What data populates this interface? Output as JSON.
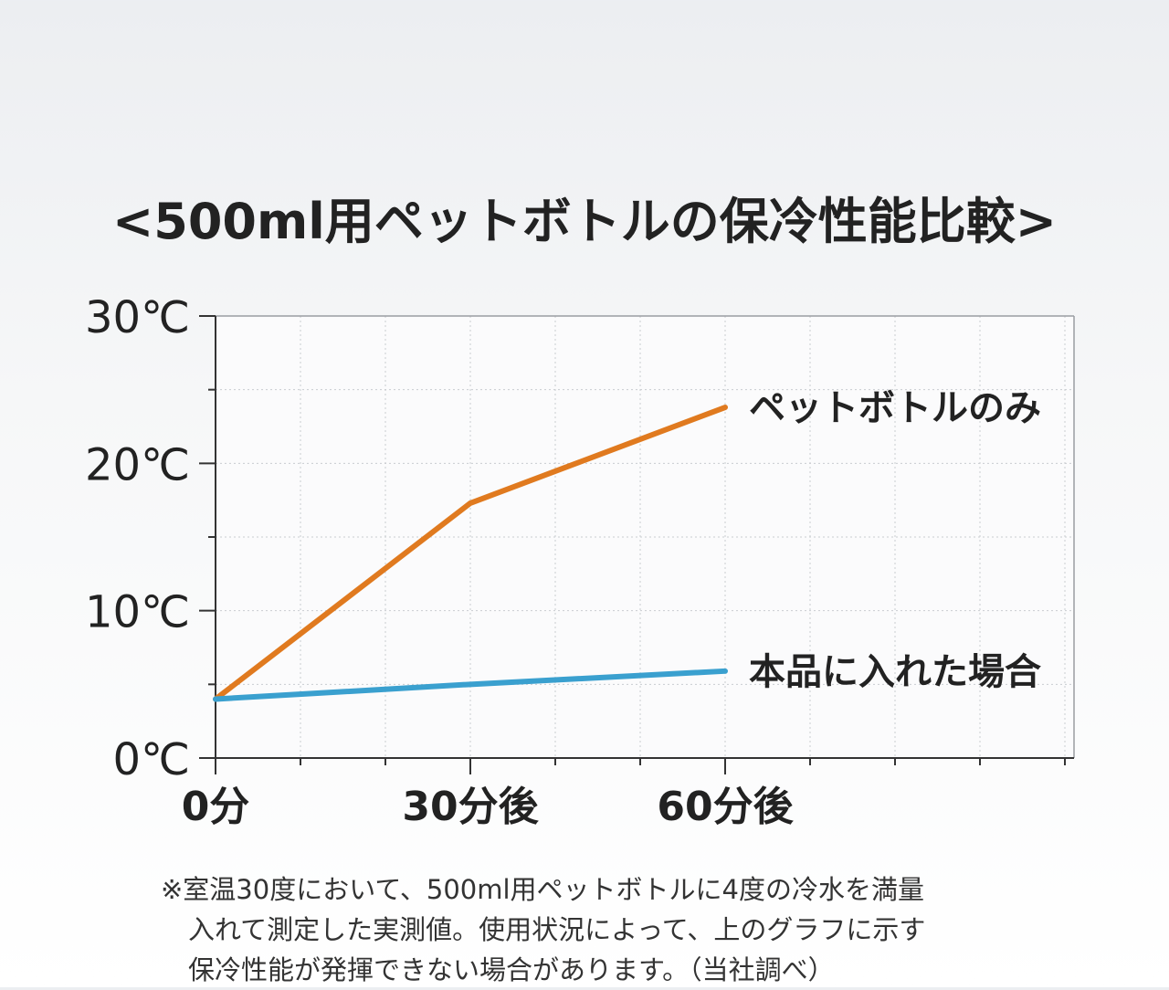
{
  "chart_data": {
    "type": "line",
    "title": "<500ml用ペットボトルの保冷性能比較>",
    "x": [
      "0分",
      "30分後",
      "60分後"
    ],
    "y_ticks": [
      "0℃",
      "10℃",
      "20℃",
      "30℃"
    ],
    "ylim": [
      0,
      30
    ],
    "grid": true,
    "series": [
      {
        "name": "ペットボトルのみ",
        "values": [
          4,
          17.3,
          23.8
        ],
        "color": "#e07a1f"
      },
      {
        "name": "本品に入れた場合",
        "values": [
          4,
          5,
          5.9
        ],
        "color": "#3aa0cf"
      }
    ]
  },
  "footnote": {
    "line1": "※室温30度において、500ml用ペットボトルに4度の冷水を満量",
    "line2": "入れて測定した実測値。使用状況によって、上のグラフに示す",
    "line3": "保冷性能が発揮できない場合があります。（当社調べ）"
  }
}
